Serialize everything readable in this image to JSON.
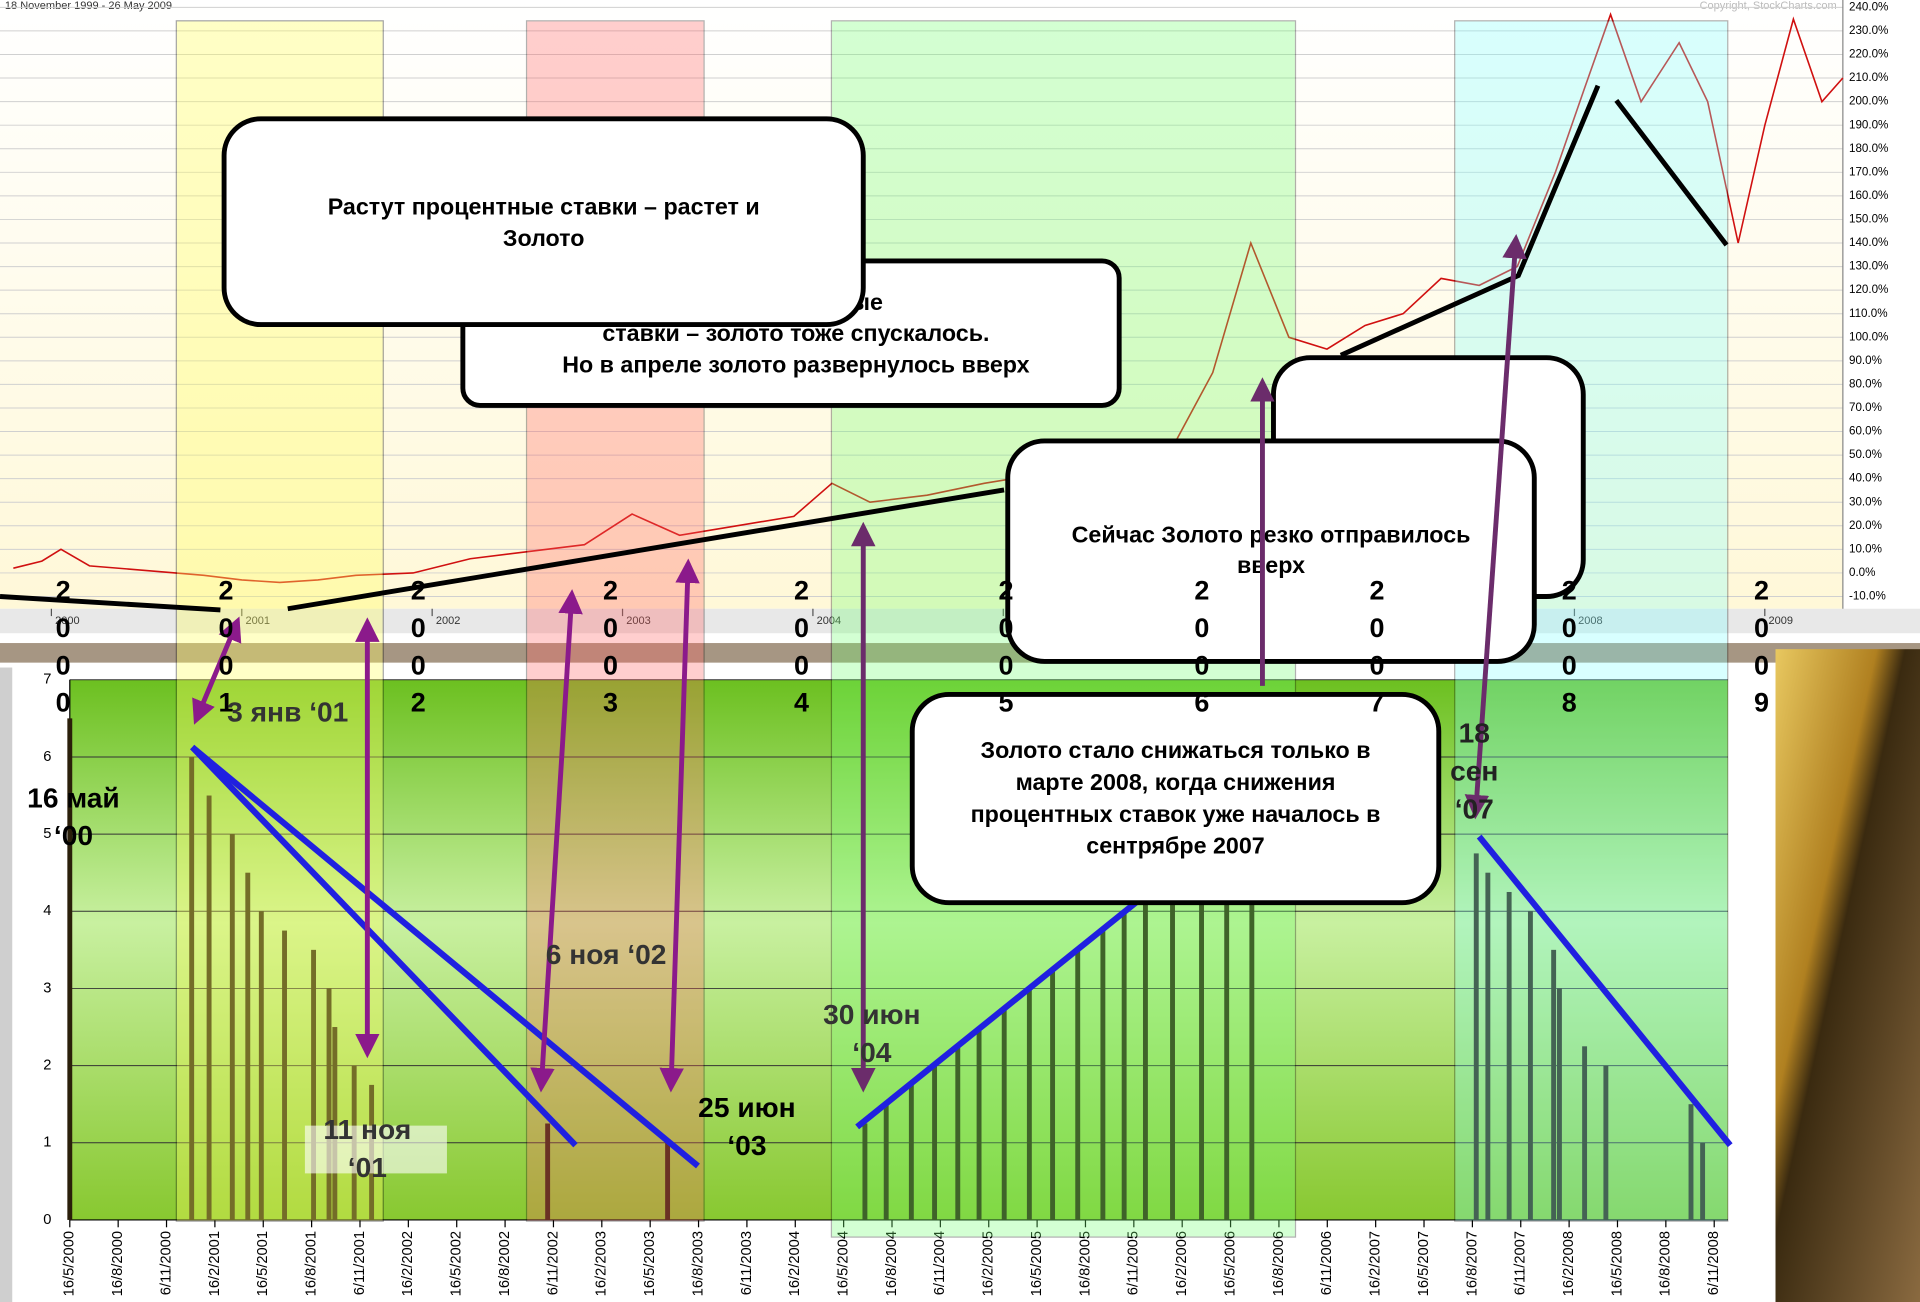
{
  "chart_data": [
    {
      "type": "line",
      "title": "18 November 1999 - 26 May 2009",
      "subtitle": "Copyright, StockCharts.com",
      "xlim": [
        1999.73,
        2009.41
      ],
      "xticks": [
        2000,
        2001,
        2002,
        2003,
        2004,
        2005,
        2006,
        2007,
        2008,
        2009
      ],
      "ylim": [
        -10,
        240
      ],
      "yticks": [
        {
          "value": -10,
          "label": "-10.0%"
        },
        {
          "value": 0,
          "label": "0.0%"
        },
        {
          "value": 10,
          "label": "10.0%"
        },
        {
          "value": 20,
          "label": "20.0%"
        },
        {
          "value": 30,
          "label": "30.0%"
        },
        {
          "value": 40,
          "label": "40.0%"
        },
        {
          "value": 50,
          "label": "50.0%"
        },
        {
          "value": 60,
          "label": "60.0%"
        },
        {
          "value": 70,
          "label": "70.0%"
        },
        {
          "value": 80,
          "label": "80.0%"
        },
        {
          "value": 90,
          "label": "90.0%"
        },
        {
          "value": 100,
          "label": "100.0%"
        },
        {
          "value": 110,
          "label": "110.0%"
        },
        {
          "value": 120,
          "label": "120.0%"
        },
        {
          "value": 130,
          "label": "130.0%"
        },
        {
          "value": 140,
          "label": "140.0%"
        },
        {
          "value": 150,
          "label": "150.0%"
        },
        {
          "value": 160,
          "label": "160.0%"
        },
        {
          "value": 170,
          "label": "170.0%"
        },
        {
          "value": 180,
          "label": "180.0%"
        },
        {
          "value": 190,
          "label": "190.0%"
        },
        {
          "value": 200,
          "label": "200.0%"
        },
        {
          "value": 210,
          "label": "210.0%"
        },
        {
          "value": 220,
          "label": "220.0%"
        },
        {
          "value": 230,
          "label": "230.0%"
        },
        {
          "value": 240,
          "label": "240.0%"
        }
      ],
      "grid": true,
      "x": [
        1999.8,
        1999.95,
        2000.05,
        2000.2,
        2000.5,
        2000.8,
        2001.0,
        2001.2,
        2001.4,
        2001.6,
        2001.9,
        2002.2,
        2002.5,
        2002.8,
        2003.05,
        2003.3,
        2003.6,
        2003.9,
        2004.1,
        2004.3,
        2004.6,
        2004.9,
        2005.2,
        2005.45,
        2005.7,
        2005.9,
        2006.1,
        2006.3,
        2006.5,
        2006.7,
        2006.9,
        2007.1,
        2007.3,
        2007.5,
        2007.7,
        2007.9,
        2008.05,
        2008.19,
        2008.35,
        2008.55,
        2008.7,
        2008.86,
        2009.0,
        2009.15,
        2009.3,
        2009.41
      ],
      "series": [
        {
          "color": "#d01010",
          "values": [
            2,
            5,
            10,
            3,
            1,
            -1,
            -3,
            -4,
            -3,
            -1,
            0,
            6,
            9,
            12,
            25,
            16,
            20,
            24,
            38,
            30,
            33,
            38,
            42,
            38,
            44,
            55,
            85,
            140,
            100,
            95,
            105,
            110,
            125,
            122,
            130,
            170,
            205,
            237,
            200,
            225,
            200,
            140,
            190,
            235,
            200,
            210
          ]
        }
      ],
      "year_labels": [
        "2000",
        "2001",
        "2002",
        "2003",
        "2004",
        "2005",
        "2006",
        "2007",
        "2008",
        "2009"
      ],
      "callouts": [
        {
          "lines": [
            "ть процентные",
            "ставки – золото тоже спускалось.",
            "Но в апреле золото развернулось вверх"
          ]
        },
        {
          "lines": [
            "Растут процентные ставки – растет и",
            "Золото"
          ]
        },
        {
          "lines": [
            "Сейчас Золото резко отправилось",
            "вверх"
          ]
        }
      ]
    },
    {
      "type": "bar",
      "xlim": [
        2000.37,
        2008.94
      ],
      "xticks": [
        {
          "value": 2000.37,
          "label": "16/5/2000"
        },
        {
          "value": 2000.62,
          "label": "16/8/2000"
        },
        {
          "value": 2000.87,
          "label": "6/11/2000"
        },
        {
          "value": 2001.12,
          "label": "16/2/2001"
        },
        {
          "value": 2001.37,
          "label": "16/5/2001"
        },
        {
          "value": 2001.62,
          "label": "16/8/2001"
        },
        {
          "value": 2001.87,
          "label": "6/11/2001"
        },
        {
          "value": 2002.12,
          "label": "16/2/2002"
        },
        {
          "value": 2002.37,
          "label": "16/5/2002"
        },
        {
          "value": 2002.62,
          "label": "16/8/2002"
        },
        {
          "value": 2002.87,
          "label": "6/11/2002"
        },
        {
          "value": 2003.12,
          "label": "16/2/2003"
        },
        {
          "value": 2003.37,
          "label": "16/5/2003"
        },
        {
          "value": 2003.62,
          "label": "16/8/2003"
        },
        {
          "value": 2003.87,
          "label": "6/11/2003"
        },
        {
          "value": 2004.12,
          "label": "16/2/2004"
        },
        {
          "value": 2004.37,
          "label": "16/5/2004"
        },
        {
          "value": 2004.62,
          "label": "16/8/2004"
        },
        {
          "value": 2004.87,
          "label": "6/11/2004"
        },
        {
          "value": 2005.12,
          "label": "16/2/2005"
        },
        {
          "value": 2005.37,
          "label": "16/5/2005"
        },
        {
          "value": 2005.62,
          "label": "16/8/2005"
        },
        {
          "value": 2005.87,
          "label": "6/11/2005"
        },
        {
          "value": 2006.12,
          "label": "16/2/2006"
        },
        {
          "value": 2006.37,
          "label": "16/5/2006"
        },
        {
          "value": 2006.62,
          "label": "16/8/2006"
        },
        {
          "value": 2006.87,
          "label": "6/11/2006"
        },
        {
          "value": 2007.12,
          "label": "16/2/2007"
        },
        {
          "value": 2007.37,
          "label": "16/5/2007"
        },
        {
          "value": 2007.62,
          "label": "16/8/2007"
        },
        {
          "value": 2007.87,
          "label": "6/11/2007"
        },
        {
          "value": 2008.12,
          "label": "16/2/2008"
        },
        {
          "value": 2008.37,
          "label": "16/5/2008"
        },
        {
          "value": 2008.62,
          "label": "16/8/2008"
        },
        {
          "value": 2008.87,
          "label": "6/11/2008"
        }
      ],
      "ylim": [
        0,
        7
      ],
      "yticks": [
        0,
        1,
        2,
        3,
        4,
        5,
        6,
        7
      ],
      "grid": true,
      "color": "#2a1f0a",
      "x": [
        2000.37,
        2001.0,
        2001.09,
        2001.21,
        2001.29,
        2001.36,
        2001.48,
        2001.63,
        2001.71,
        2001.74,
        2001.84,
        2001.93,
        2002.84,
        2003.46,
        2004.48,
        2004.59,
        2004.72,
        2004.84,
        2004.96,
        2005.07,
        2005.2,
        2005.33,
        2005.45,
        2005.58,
        2005.71,
        2005.82,
        2005.93,
        2006.07,
        2006.22,
        2006.35,
        2006.48,
        2007.64,
        2007.7,
        2007.81,
        2007.92,
        2008.04,
        2008.07,
        2008.2,
        2008.31,
        2008.75,
        2008.81
      ],
      "values": [
        6.5,
        6,
        5.5,
        5,
        4.5,
        4,
        3.75,
        3.5,
        3,
        2.5,
        2,
        1.75,
        1.25,
        1,
        1.25,
        1.5,
        1.75,
        2,
        2.25,
        2.5,
        2.75,
        3,
        3.25,
        3.5,
        3.75,
        4,
        4.25,
        4.5,
        4.75,
        5,
        5.25,
        4.75,
        4.5,
        4.25,
        4,
        3.5,
        3,
        2.25,
        2,
        1.5,
        1
      ],
      "date_labels": [
        {
          "lines": [
            "3 янв ‘01"
          ]
        },
        {
          "lines": [
            "16 май",
            "‘00"
          ]
        },
        {
          "lines": [
            "11 ноя",
            "‘01"
          ]
        },
        {
          "lines": [
            "6 ноя ‘02"
          ]
        },
        {
          "lines": [
            "25 июн",
            "‘03"
          ]
        },
        {
          "lines": [
            "30 июн",
            "‘04"
          ]
        },
        {
          "lines": [
            "18",
            "сен",
            "‘07"
          ]
        }
      ],
      "callouts": [
        {
          "lines": [
            "Золото стало снижаться только в",
            "марте 2008, когда снижения",
            "процентных ставок уже началось в",
            "сентрябре 2007"
          ]
        }
      ]
    }
  ]
}
